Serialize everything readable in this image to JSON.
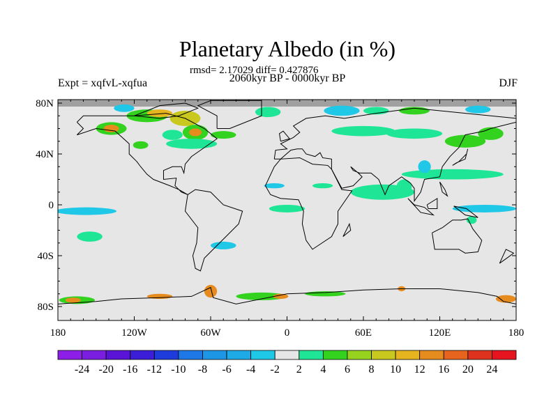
{
  "title": "Planetary Albedo (in %)",
  "stats": "rmsd= 2.17029 diff= 0.427876",
  "subtitle": "2060kyr BP - 0000kyr BP",
  "left_label": "Expt = xqfvL-xqfua",
  "right_label": "DJF",
  "map": {
    "lon_ticks": [
      {
        "lon": -180,
        "label": "180"
      },
      {
        "lon": -120,
        "label": "120W"
      },
      {
        "lon": -60,
        "label": "60W"
      },
      {
        "lon": 0,
        "label": "0"
      },
      {
        "lon": 60,
        "label": "60E"
      },
      {
        "lon": 120,
        "label": "120E"
      },
      {
        "lon": 180,
        "label": "180"
      }
    ],
    "lat_ticks": [
      {
        "lat": 80,
        "label": "80N"
      },
      {
        "lat": 40,
        "label": "40N"
      },
      {
        "lat": 0,
        "label": "0"
      },
      {
        "lat": -40,
        "label": "40S"
      },
      {
        "lat": -80,
        "label": "80S"
      }
    ],
    "background_color": "#e6e6e6",
    "missing_color": "#a0a0a0",
    "anomalies": [
      {
        "lon": -138,
        "lat": 60,
        "rx": 12,
        "ry": 5,
        "val": 5
      },
      {
        "lon": -138,
        "lat": 60,
        "rx": 6,
        "ry": 3,
        "val": 14
      },
      {
        "lon": -110,
        "lat": 70,
        "rx": 16,
        "ry": 5,
        "val": 5
      },
      {
        "lon": -100,
        "lat": 72,
        "rx": 10,
        "ry": 3,
        "val": 11
      },
      {
        "lon": -80,
        "lat": 68,
        "rx": 12,
        "ry": 6,
        "val": 9
      },
      {
        "lon": -72,
        "lat": 57,
        "rx": 10,
        "ry": 6,
        "val": 5
      },
      {
        "lon": -72,
        "lat": 57,
        "rx": 5,
        "ry": 3,
        "val": 14
      },
      {
        "lon": -90,
        "lat": 55,
        "rx": 8,
        "ry": 4,
        "val": 3
      },
      {
        "lon": -75,
        "lat": 48,
        "rx": 20,
        "ry": 4,
        "val": 3
      },
      {
        "lon": -50,
        "lat": 55,
        "rx": 10,
        "ry": 3,
        "val": 5
      },
      {
        "lon": -115,
        "lat": 47,
        "rx": 6,
        "ry": 3,
        "val": 5
      },
      {
        "lon": -128,
        "lat": 76,
        "rx": 8,
        "ry": 3,
        "val": -3
      },
      {
        "lon": -15,
        "lat": 73,
        "rx": 10,
        "ry": 4,
        "val": 3
      },
      {
        "lon": 43,
        "lat": 74,
        "rx": 14,
        "ry": 4,
        "val": -3
      },
      {
        "lon": 70,
        "lat": 74,
        "rx": 10,
        "ry": 3,
        "val": 3
      },
      {
        "lon": 100,
        "lat": 74,
        "rx": 12,
        "ry": 3,
        "val": 5
      },
      {
        "lon": 150,
        "lat": 75,
        "rx": 10,
        "ry": 3,
        "val": -3
      },
      {
        "lon": 60,
        "lat": 58,
        "rx": 25,
        "ry": 4,
        "val": 3
      },
      {
        "lon": 100,
        "lat": 56,
        "rx": 22,
        "ry": 4,
        "val": 3
      },
      {
        "lon": 140,
        "lat": 50,
        "rx": 16,
        "ry": 5,
        "val": 5
      },
      {
        "lon": 160,
        "lat": 56,
        "rx": 10,
        "ry": 5,
        "val": 5
      },
      {
        "lon": 130,
        "lat": 24,
        "rx": 40,
        "ry": 4,
        "val": 3
      },
      {
        "lon": 108,
        "lat": 30,
        "rx": 5,
        "ry": 5,
        "val": -3
      },
      {
        "lon": 75,
        "lat": 10,
        "rx": 25,
        "ry": 6,
        "val": 3
      },
      {
        "lon": 92,
        "lat": 14,
        "rx": 6,
        "ry": 6,
        "val": 3
      },
      {
        "lon": 155,
        "lat": -3,
        "rx": 25,
        "ry": 3,
        "val": -3
      },
      {
        "lon": -158,
        "lat": -5,
        "rx": 24,
        "ry": 3,
        "val": -3
      },
      {
        "lon": -155,
        "lat": -25,
        "rx": 10,
        "ry": 4,
        "val": 3
      },
      {
        "lon": -50,
        "lat": -32,
        "rx": 10,
        "ry": 3,
        "val": -3
      },
      {
        "lon": 0,
        "lat": -3,
        "rx": 14,
        "ry": 3,
        "val": 3
      },
      {
        "lon": -10,
        "lat": 15,
        "rx": 8,
        "ry": 2,
        "val": -3
      },
      {
        "lon": 28,
        "lat": 15,
        "rx": 8,
        "ry": 2,
        "val": 3
      },
      {
        "lon": 145,
        "lat": -12,
        "rx": 4,
        "ry": 3,
        "val": 3
      },
      {
        "lon": -165,
        "lat": -75,
        "rx": 14,
        "ry": 3,
        "val": 5
      },
      {
        "lon": -168,
        "lat": -75,
        "rx": 6,
        "ry": 2,
        "val": 14
      },
      {
        "lon": -60,
        "lat": -68,
        "rx": 5,
        "ry": 5,
        "val": 14
      },
      {
        "lon": -20,
        "lat": -72,
        "rx": 20,
        "ry": 3,
        "val": 5
      },
      {
        "lon": -5,
        "lat": -72,
        "rx": 6,
        "ry": 2,
        "val": 14
      },
      {
        "lon": 30,
        "lat": -70,
        "rx": 16,
        "ry": 2,
        "val": 5
      },
      {
        "lon": 90,
        "lat": -66,
        "rx": 3,
        "ry": 2,
        "val": 14
      },
      {
        "lon": -100,
        "lat": -72,
        "rx": 10,
        "ry": 2,
        "val": 12
      },
      {
        "lon": 172,
        "lat": -74,
        "rx": 8,
        "ry": 3,
        "val": 14
      }
    ]
  },
  "colorbar": {
    "colors": [
      "#8c1ee8",
      "#7a1ee0",
      "#5a14d8",
      "#3c1ed8",
      "#1e3cdc",
      "#1e78e6",
      "#1e96e6",
      "#1eaae6",
      "#1ec8e6",
      "#e6e6e6",
      "#1ee696",
      "#32d21e",
      "#96d21e",
      "#c8c81e",
      "#e6b41e",
      "#e68c1e",
      "#e6641e",
      "#dc321e",
      "#e6141e"
    ],
    "levels": [
      -24,
      -20,
      -16,
      -12,
      -10,
      -8,
      -6,
      -4,
      -2,
      2,
      4,
      6,
      8,
      10,
      12,
      16,
      20,
      24
    ],
    "labels": [
      "-24",
      "-20",
      "-16",
      "-12",
      "-10",
      "-8",
      "-6",
      "-4",
      "-2",
      "2",
      "4",
      "6",
      "8",
      "10",
      "12",
      "16",
      "20",
      "24"
    ]
  }
}
